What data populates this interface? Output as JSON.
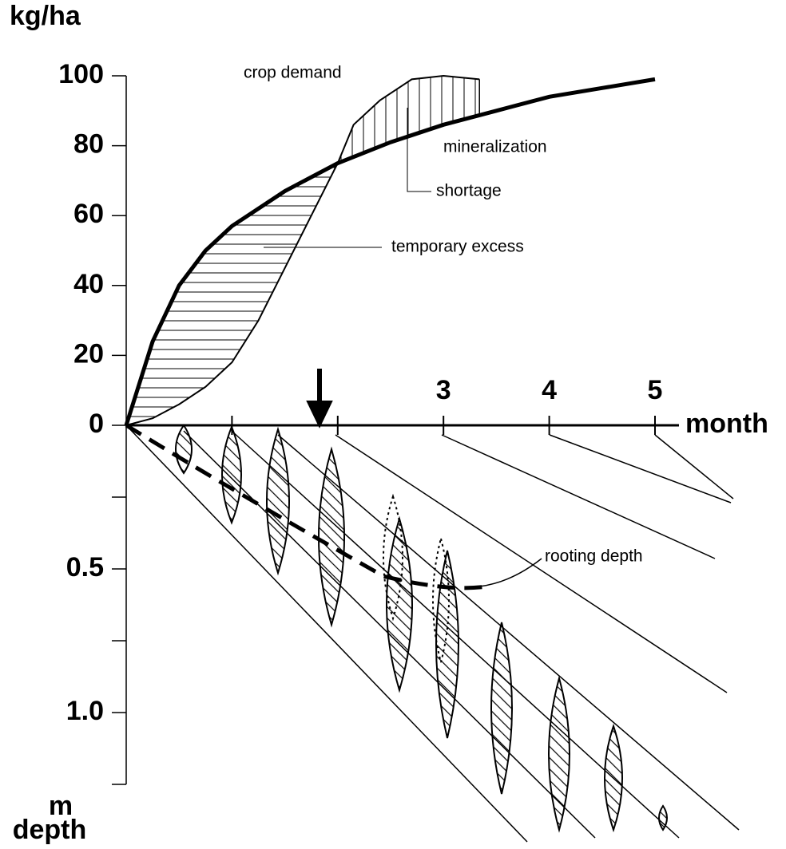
{
  "chart_data": {
    "type": "line",
    "y_label": "kg/ha",
    "x_label": "month",
    "y2_unit": "m",
    "y2_label": "depth",
    "xlim": [
      0,
      5
    ],
    "xticks": [
      3,
      4,
      5
    ],
    "xminor_ticks": [
      1,
      2
    ],
    "ylim": [
      0,
      100
    ],
    "yticks": [
      0,
      20,
      40,
      60,
      80,
      100
    ],
    "y2lim": [
      0,
      1.25
    ],
    "y2ticks": [
      0.5,
      {
        "value": 1.0,
        "label": "1.0"
      }
    ],
    "y2minor_ticks": [
      0.25,
      0.75,
      1.25
    ],
    "series": [
      {
        "name": "mineralization",
        "color": "#000000",
        "x": [
          0,
          0.25,
          0.5,
          0.75,
          1,
          1.5,
          2,
          2.5,
          3,
          3.5,
          4,
          4.5,
          5
        ],
        "values": [
          0,
          24,
          40,
          50,
          57,
          67,
          75,
          81,
          86,
          90,
          94,
          96.5,
          99
        ]
      },
      {
        "name": "crop demand",
        "color": "#000000",
        "x": [
          0,
          0.25,
          0.5,
          0.75,
          1,
          1.25,
          1.5,
          1.75,
          2,
          2.15,
          2.4,
          2.7,
          3,
          3.34
        ],
        "values": [
          0,
          2,
          6,
          11,
          18,
          30,
          45,
          60,
          75,
          86,
          93,
          99,
          100,
          99
        ]
      }
    ],
    "annotations": [
      "shortage",
      "temporary excess",
      "rooting depth"
    ]
  }
}
